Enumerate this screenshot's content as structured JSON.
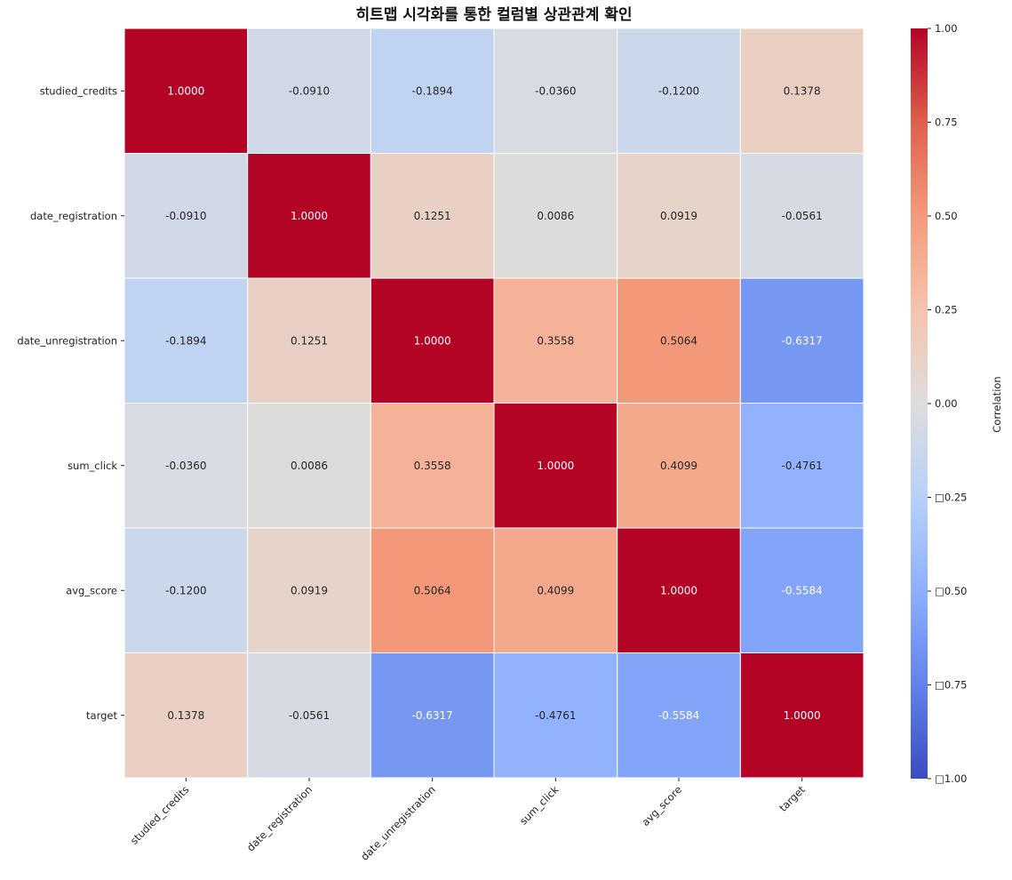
{
  "chart_data": {
    "type": "heatmap",
    "title": "히트맵 시각화를 통한 컬럼별 상관관계 확인",
    "xlabel": "",
    "ylabel": "",
    "x_categories": [
      "studied_credits",
      "date_registration",
      "date_unregistration",
      "sum_click",
      "avg_score",
      "target"
    ],
    "y_categories": [
      "studied_credits",
      "date_registration",
      "date_unregistration",
      "sum_click",
      "avg_score",
      "target"
    ],
    "values": [
      [
        1.0,
        -0.091,
        -0.1894,
        -0.036,
        -0.12,
        0.1378
      ],
      [
        -0.091,
        1.0,
        0.1251,
        0.0086,
        0.0919,
        -0.0561
      ],
      [
        -0.1894,
        0.1251,
        1.0,
        0.3558,
        0.5064,
        -0.6317
      ],
      [
        -0.036,
        0.0086,
        0.3558,
        1.0,
        0.4099,
        -0.4761
      ],
      [
        -0.12,
        0.0919,
        0.5064,
        0.4099,
        1.0,
        -0.5584
      ],
      [
        0.1378,
        -0.0561,
        -0.6317,
        -0.4761,
        -0.5584,
        1.0
      ]
    ],
    "annotation_format": "0.0000",
    "colormap": "coolwarm",
    "vmin": -1.0,
    "vmax": 1.0,
    "colorbar": {
      "label": "Correlation",
      "ticks": [
        1.0,
        0.75,
        0.5,
        0.25,
        0.0,
        -0.25,
        -0.5,
        -0.75,
        -1.0
      ],
      "tick_labels": [
        "1.00",
        "0.75",
        "0.50",
        "0.25",
        "0.00",
        "□0.25",
        "□0.50",
        "□0.75",
        "□1.00"
      ],
      "placement": "right"
    },
    "x_tick_rotation_deg": 45,
    "grid_line_color": "#ffffff"
  }
}
